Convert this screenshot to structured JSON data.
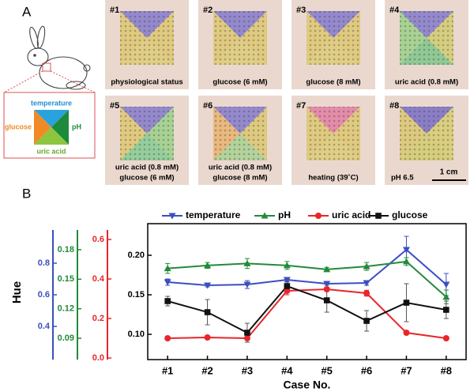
{
  "panel_a": {
    "label": "A",
    "diagram": {
      "labels": [
        "temperature",
        "pH",
        "uric acid",
        "glucose"
      ]
    },
    "tiles": [
      {
        "number": "#1",
        "caption": [
          "physiological status"
        ]
      },
      {
        "number": "#2",
        "caption": [
          "glucose (6 mM)"
        ]
      },
      {
        "number": "#3",
        "caption": [
          "glucose (8 mM)"
        ]
      },
      {
        "number": "#4",
        "caption": [
          "uric acid (0.8 mM)"
        ]
      },
      {
        "number": "#5",
        "caption": [
          "uric acid (0.8 mM)",
          "glucose (6 mM)"
        ]
      },
      {
        "number": "#6",
        "caption": [
          "uric acid (0.8 mM)",
          "glucose (8 mM)"
        ]
      },
      {
        "number": "#7",
        "caption": [
          "heating (39˚C)"
        ]
      },
      {
        "number": "#8",
        "caption": [
          "pH 6.5"
        ]
      }
    ],
    "scale_bar": "1 cm"
  },
  "chart_data": {
    "type": "line",
    "panel_label": "B",
    "y_label": "Hue",
    "x_label": "Case No.",
    "legend": "top",
    "categories": [
      "#1",
      "#2",
      "#3",
      "#4",
      "#5",
      "#6",
      "#7",
      "#8"
    ],
    "ylim": [
      0.068,
      0.24
    ],
    "yticks": [
      {
        "value": 0.1,
        "label": "0.10"
      },
      0.15,
      {
        "value": 0.2,
        "label": "0.20"
      }
    ],
    "y2lim": [
      -0.008,
      0.68
    ],
    "y2ticks": [
      {
        "value": 0,
        "label": "0.0"
      },
      0.2,
      0.4,
      0.6
    ],
    "y3lim": [
      0.0683,
      0.2065
    ],
    "y3ticks": [
      0.09,
      0.12,
      0.15,
      0.18
    ],
    "y4lim": [
      0.19,
      1.05
    ],
    "y4ticks": [
      0.4,
      0.6,
      0.8
    ],
    "series": [
      {
        "name": "temperature",
        "color": "#3b4fc0",
        "marker": "triangle-down",
        "axis": "y4",
        "values": [
          0.68,
          0.66,
          0.665,
          0.695,
          0.67,
          0.675,
          0.885,
          0.665
        ],
        "errors": [
          0.02,
          0.01,
          0.025,
          0.01,
          0.01,
          0.015,
          0.085,
          0.07
        ]
      },
      {
        "name": "pH",
        "color": "#238a3a",
        "marker": "triangle-up",
        "axis": "y3",
        "values": [
          0.161,
          0.164,
          0.166,
          0.164,
          0.16,
          0.163,
          0.168,
          0.132
        ],
        "errors": [
          0.005,
          0.003,
          0.005,
          0.004,
          0.002,
          0.004,
          0.004,
          0.007
        ]
      },
      {
        "name": "uric acid",
        "color": "#e8262a",
        "marker": "circle",
        "axis": "y2",
        "values": [
          0.1,
          0.104,
          0.1,
          0.34,
          0.348,
          0.328,
          0.128,
          0.1
        ],
        "errors": [
          0.005,
          0.005,
          0.02,
          0.02,
          0.01,
          0.015,
          0.005,
          0.005
        ]
      },
      {
        "name": "glucose",
        "color": "#111111",
        "marker": "square",
        "axis": "y",
        "values": [
          0.142,
          0.128,
          0.102,
          0.161,
          0.143,
          0.117,
          0.14,
          0.131
        ],
        "errors": [
          0.006,
          0.016,
          0.012,
          0.005,
          0.015,
          0.013,
          0.024,
          0.011
        ]
      }
    ]
  }
}
